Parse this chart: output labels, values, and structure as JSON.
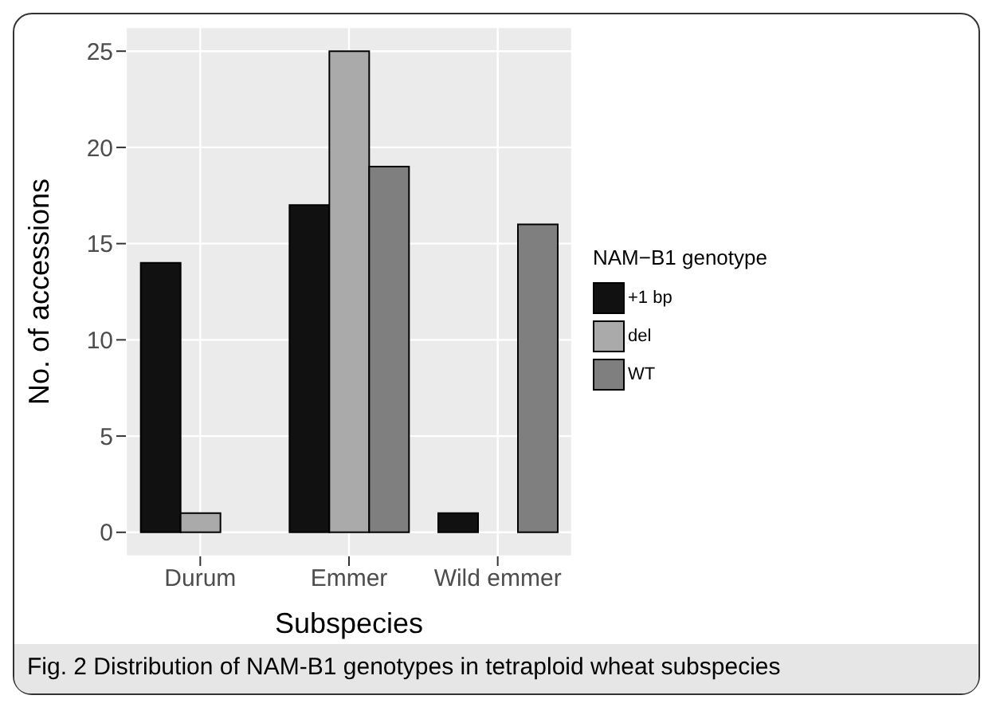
{
  "chart_data": {
    "type": "bar",
    "xlabel": "Subspecies",
    "ylabel": "No. of accessions",
    "legend_title": "NAM−B1 genotype",
    "categories": [
      "Durum",
      "Emmer",
      "Wild emmer"
    ],
    "series": [
      {
        "name": "+1 bp",
        "color": "#111111",
        "values": [
          14,
          17,
          1
        ]
      },
      {
        "name": "del",
        "color": "#aaaaaa",
        "values": [
          1,
          25,
          0
        ]
      },
      {
        "name": "WT",
        "color": "#7f7f7f",
        "values": [
          0,
          19,
          16
        ]
      }
    ],
    "ylim": [
      -1.25,
      26.25
    ],
    "yticks": [
      0,
      5,
      10,
      15,
      20,
      25
    ],
    "grid": true,
    "legend": "right",
    "annotations": [
      "Fig. 2 Distribution of NAM-B1 genotypes in tetraploid wheat subspecies"
    ]
  }
}
